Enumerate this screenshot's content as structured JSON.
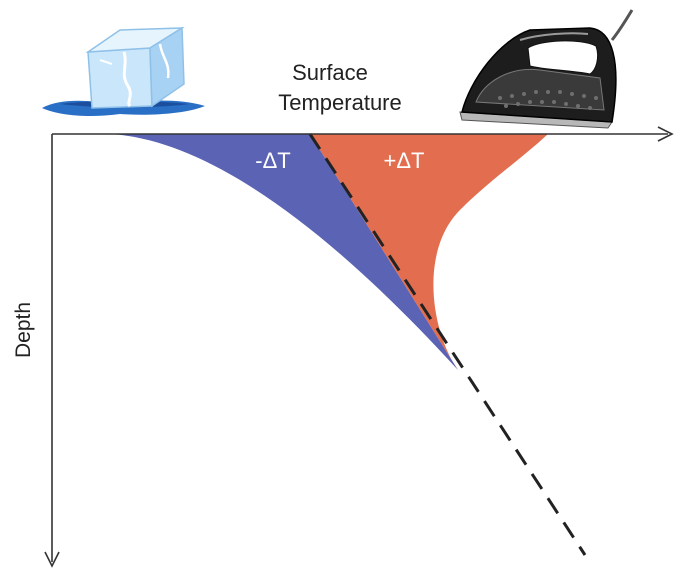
{
  "labels": {
    "surface_line1": "Surface",
    "surface_line2": "Temperature",
    "depth": "Depth",
    "cooling": "-ΔT",
    "warming": "+ΔT"
  },
  "icons": {
    "left": "ice-cube-icon",
    "right": "clothes-iron-icon"
  },
  "colors": {
    "cooling_region": "#5b63b4",
    "warming_region": "#e36e4f",
    "axis": "#333333",
    "profile_line": "#222222"
  }
}
